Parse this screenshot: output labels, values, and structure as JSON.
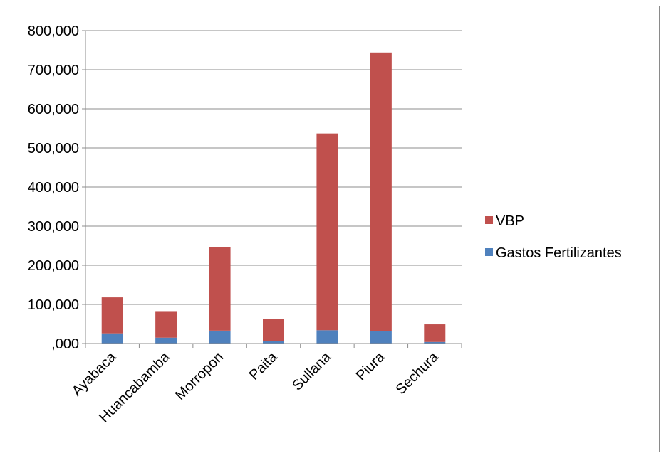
{
  "chart_data": {
    "type": "bar",
    "stacked": true,
    "categories": [
      "Ayabaca",
      "Huancabamba",
      "Morropon",
      "Paita",
      "Sullana",
      "Piura",
      "Sechura"
    ],
    "series": [
      {
        "name": "Gastos Fertilizantes",
        "color": "#4f81bd",
        "values": [
          26000,
          15000,
          33000,
          6000,
          34000,
          31000,
          4000
        ]
      },
      {
        "name": "VBP",
        "color": "#c0504d",
        "values": [
          92000,
          66000,
          214000,
          56000,
          503000,
          713000,
          45000
        ]
      }
    ],
    "ylim": [
      0,
      800000
    ],
    "yticks": [
      0,
      100000,
      200000,
      300000,
      400000,
      500000,
      600000,
      700000,
      800000
    ],
    "ytick_labels": [
      ",000",
      "100,000",
      "200,000",
      "300,000",
      "400,000",
      "500,000",
      "600,000",
      "700,000",
      "800,000"
    ],
    "legend": {
      "position": "right",
      "entries": [
        {
          "label": "VBP",
          "color": "#c0504d"
        },
        {
          "label": "Gastos Fertilizantes",
          "color": "#4f81bd"
        }
      ]
    },
    "grid": true,
    "gridline_color": "#8c8c8c",
    "title": "",
    "xlabel": "",
    "ylabel": ""
  }
}
